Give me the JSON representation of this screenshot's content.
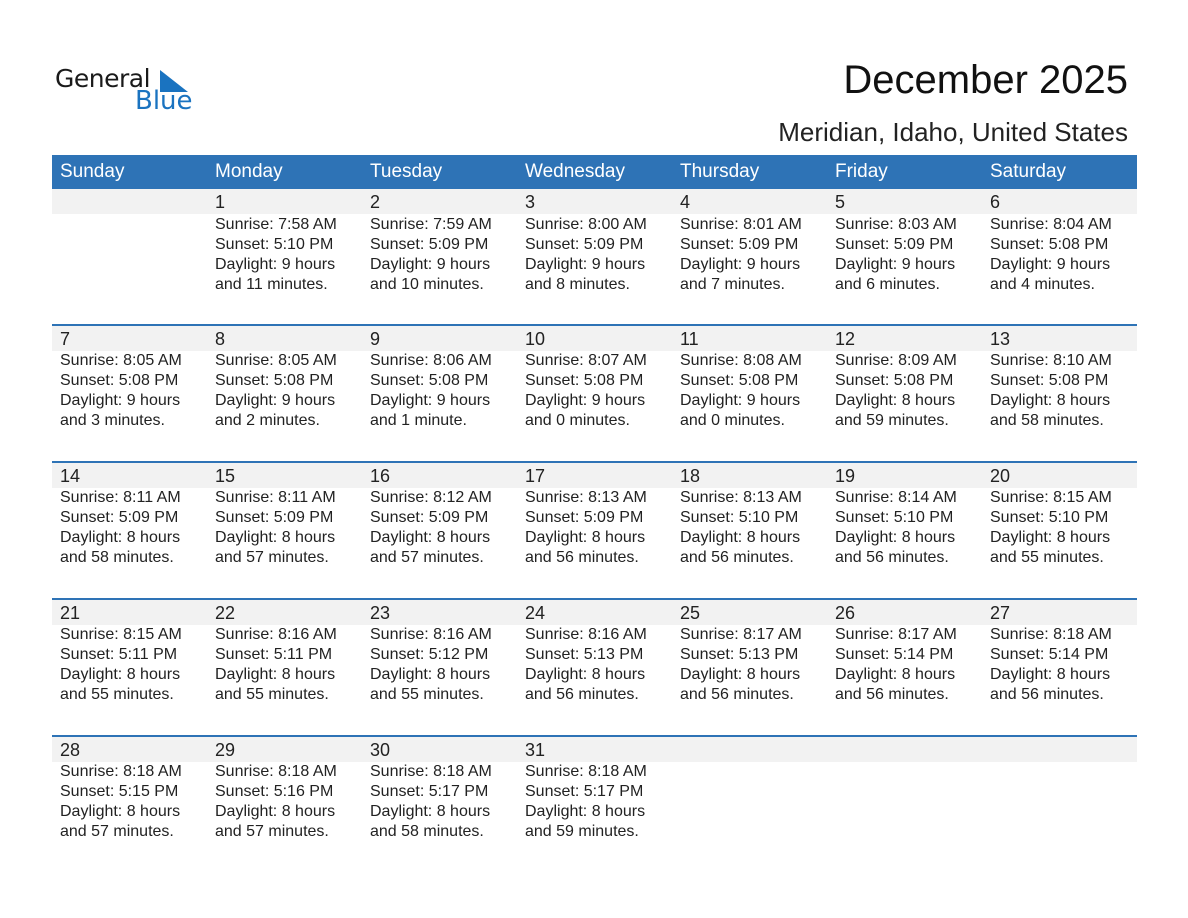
{
  "logo": {
    "general": "General",
    "blue": "Blue"
  },
  "title": "December 2025",
  "subtitle": "Meridian, Idaho, United States",
  "colors": {
    "header": "#2e73b6",
    "band": "#f2f2f2",
    "logo_blue": "#1a73c0"
  },
  "weekdays": [
    "Sunday",
    "Monday",
    "Tuesday",
    "Wednesday",
    "Thursday",
    "Friday",
    "Saturday"
  ],
  "weeks": [
    [
      null,
      {
        "day": "1",
        "sunrise": "Sunrise: 7:58 AM",
        "sunset": "Sunset: 5:10 PM",
        "daylight": "Daylight: 9 hours",
        "minutes": "and 11 minutes."
      },
      {
        "day": "2",
        "sunrise": "Sunrise: 7:59 AM",
        "sunset": "Sunset: 5:09 PM",
        "daylight": "Daylight: 9 hours",
        "minutes": "and 10 minutes."
      },
      {
        "day": "3",
        "sunrise": "Sunrise: 8:00 AM",
        "sunset": "Sunset: 5:09 PM",
        "daylight": "Daylight: 9 hours",
        "minutes": "and 8 minutes."
      },
      {
        "day": "4",
        "sunrise": "Sunrise: 8:01 AM",
        "sunset": "Sunset: 5:09 PM",
        "daylight": "Daylight: 9 hours",
        "minutes": "and 7 minutes."
      },
      {
        "day": "5",
        "sunrise": "Sunrise: 8:03 AM",
        "sunset": "Sunset: 5:09 PM",
        "daylight": "Daylight: 9 hours",
        "minutes": "and 6 minutes."
      },
      {
        "day": "6",
        "sunrise": "Sunrise: 8:04 AM",
        "sunset": "Sunset: 5:08 PM",
        "daylight": "Daylight: 9 hours",
        "minutes": "and 4 minutes."
      }
    ],
    [
      {
        "day": "7",
        "sunrise": "Sunrise: 8:05 AM",
        "sunset": "Sunset: 5:08 PM",
        "daylight": "Daylight: 9 hours",
        "minutes": "and 3 minutes."
      },
      {
        "day": "8",
        "sunrise": "Sunrise: 8:05 AM",
        "sunset": "Sunset: 5:08 PM",
        "daylight": "Daylight: 9 hours",
        "minutes": "and 2 minutes."
      },
      {
        "day": "9",
        "sunrise": "Sunrise: 8:06 AM",
        "sunset": "Sunset: 5:08 PM",
        "daylight": "Daylight: 9 hours",
        "minutes": "and 1 minute."
      },
      {
        "day": "10",
        "sunrise": "Sunrise: 8:07 AM",
        "sunset": "Sunset: 5:08 PM",
        "daylight": "Daylight: 9 hours",
        "minutes": "and 0 minutes."
      },
      {
        "day": "11",
        "sunrise": "Sunrise: 8:08 AM",
        "sunset": "Sunset: 5:08 PM",
        "daylight": "Daylight: 9 hours",
        "minutes": "and 0 minutes."
      },
      {
        "day": "12",
        "sunrise": "Sunrise: 8:09 AM",
        "sunset": "Sunset: 5:08 PM",
        "daylight": "Daylight: 8 hours",
        "minutes": "and 59 minutes."
      },
      {
        "day": "13",
        "sunrise": "Sunrise: 8:10 AM",
        "sunset": "Sunset: 5:08 PM",
        "daylight": "Daylight: 8 hours",
        "minutes": "and 58 minutes."
      }
    ],
    [
      {
        "day": "14",
        "sunrise": "Sunrise: 8:11 AM",
        "sunset": "Sunset: 5:09 PM",
        "daylight": "Daylight: 8 hours",
        "minutes": "and 58 minutes."
      },
      {
        "day": "15",
        "sunrise": "Sunrise: 8:11 AM",
        "sunset": "Sunset: 5:09 PM",
        "daylight": "Daylight: 8 hours",
        "minutes": "and 57 minutes."
      },
      {
        "day": "16",
        "sunrise": "Sunrise: 8:12 AM",
        "sunset": "Sunset: 5:09 PM",
        "daylight": "Daylight: 8 hours",
        "minutes": "and 57 minutes."
      },
      {
        "day": "17",
        "sunrise": "Sunrise: 8:13 AM",
        "sunset": "Sunset: 5:09 PM",
        "daylight": "Daylight: 8 hours",
        "minutes": "and 56 minutes."
      },
      {
        "day": "18",
        "sunrise": "Sunrise: 8:13 AM",
        "sunset": "Sunset: 5:10 PM",
        "daylight": "Daylight: 8 hours",
        "minutes": "and 56 minutes."
      },
      {
        "day": "19",
        "sunrise": "Sunrise: 8:14 AM",
        "sunset": "Sunset: 5:10 PM",
        "daylight": "Daylight: 8 hours",
        "minutes": "and 56 minutes."
      },
      {
        "day": "20",
        "sunrise": "Sunrise: 8:15 AM",
        "sunset": "Sunset: 5:10 PM",
        "daylight": "Daylight: 8 hours",
        "minutes": "and 55 minutes."
      }
    ],
    [
      {
        "day": "21",
        "sunrise": "Sunrise: 8:15 AM",
        "sunset": "Sunset: 5:11 PM",
        "daylight": "Daylight: 8 hours",
        "minutes": "and 55 minutes."
      },
      {
        "day": "22",
        "sunrise": "Sunrise: 8:16 AM",
        "sunset": "Sunset: 5:11 PM",
        "daylight": "Daylight: 8 hours",
        "minutes": "and 55 minutes."
      },
      {
        "day": "23",
        "sunrise": "Sunrise: 8:16 AM",
        "sunset": "Sunset: 5:12 PM",
        "daylight": "Daylight: 8 hours",
        "minutes": "and 55 minutes."
      },
      {
        "day": "24",
        "sunrise": "Sunrise: 8:16 AM",
        "sunset": "Sunset: 5:13 PM",
        "daylight": "Daylight: 8 hours",
        "minutes": "and 56 minutes."
      },
      {
        "day": "25",
        "sunrise": "Sunrise: 8:17 AM",
        "sunset": "Sunset: 5:13 PM",
        "daylight": "Daylight: 8 hours",
        "minutes": "and 56 minutes."
      },
      {
        "day": "26",
        "sunrise": "Sunrise: 8:17 AM",
        "sunset": "Sunset: 5:14 PM",
        "daylight": "Daylight: 8 hours",
        "minutes": "and 56 minutes."
      },
      {
        "day": "27",
        "sunrise": "Sunrise: 8:18 AM",
        "sunset": "Sunset: 5:14 PM",
        "daylight": "Daylight: 8 hours",
        "minutes": "and 56 minutes."
      }
    ],
    [
      {
        "day": "28",
        "sunrise": "Sunrise: 8:18 AM",
        "sunset": "Sunset: 5:15 PM",
        "daylight": "Daylight: 8 hours",
        "minutes": "and 57 minutes."
      },
      {
        "day": "29",
        "sunrise": "Sunrise: 8:18 AM",
        "sunset": "Sunset: 5:16 PM",
        "daylight": "Daylight: 8 hours",
        "minutes": "and 57 minutes."
      },
      {
        "day": "30",
        "sunrise": "Sunrise: 8:18 AM",
        "sunset": "Sunset: 5:17 PM",
        "daylight": "Daylight: 8 hours",
        "minutes": "and 58 minutes."
      },
      {
        "day": "31",
        "sunrise": "Sunrise: 8:18 AM",
        "sunset": "Sunset: 5:17 PM",
        "daylight": "Daylight: 8 hours",
        "minutes": "and 59 minutes."
      },
      null,
      null,
      null
    ]
  ]
}
